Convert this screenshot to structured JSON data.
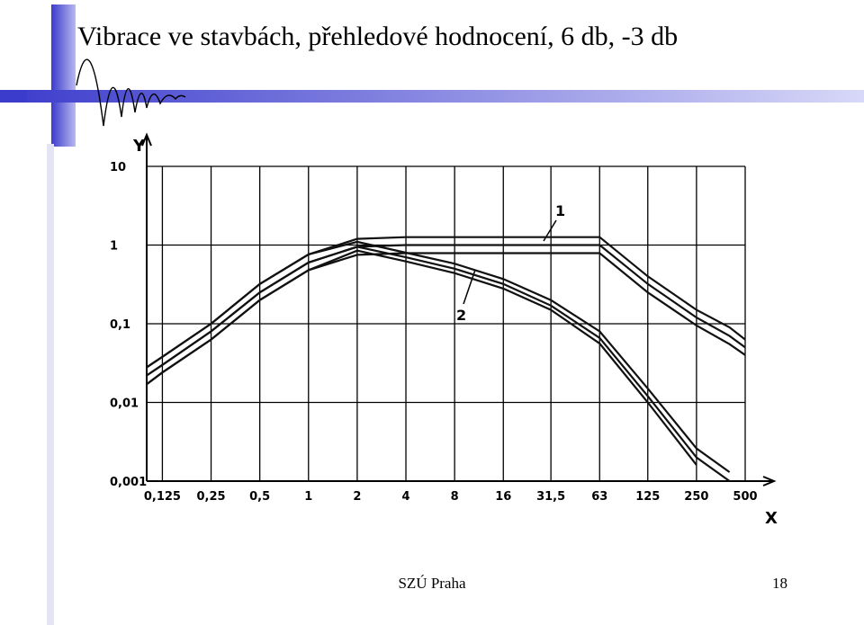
{
  "slide": {
    "title": "Vibrace ve stavbách, přehledové hodnocení, 6 db, -3 db",
    "footer": "SZÚ Praha",
    "page_number": "18"
  },
  "chart_data": {
    "type": "line",
    "log_x": true,
    "log_y": true,
    "grid": true,
    "x_label": "X",
    "y_label": "Y",
    "x": [
      0.1,
      0.125,
      0.25,
      0.5,
      1,
      2,
      4,
      8,
      16,
      31.5,
      63,
      125,
      250,
      400,
      500
    ],
    "xlim": [
      0.1,
      500
    ],
    "xticks": [
      {
        "value": 0.125,
        "label": "0,125"
      },
      {
        "value": 0.25,
        "label": "0,25"
      },
      {
        "value": 0.5,
        "label": "0,5"
      },
      1,
      2,
      4,
      8,
      16,
      {
        "value": 31.5,
        "label": "31,5"
      },
      63,
      125,
      250,
      500
    ],
    "ylim": [
      0.001,
      10
    ],
    "yticks": [
      {
        "value": 0.001,
        "label": "0,001"
      },
      {
        "value": 0.01,
        "label": "0,01"
      },
      {
        "value": 0.1,
        "label": "0,1"
      },
      1,
      10
    ],
    "series": [
      {
        "name": "1",
        "color": "#111111",
        "values": [
          0.022,
          0.03,
          0.08,
          0.25,
          0.6,
          0.95,
          1,
          1,
          1,
          1,
          1,
          0.32,
          0.12,
          0.07,
          0.05
        ],
        "upper": [
          0.028,
          0.038,
          0.1,
          0.32,
          0.76,
          1.2,
          1.26,
          1.26,
          1.26,
          1.26,
          1.26,
          0.4,
          0.15,
          0.09,
          0.063
        ],
        "lower": [
          0.017,
          0.024,
          0.063,
          0.2,
          0.48,
          0.75,
          0.79,
          0.79,
          0.79,
          0.79,
          0.79,
          0.25,
          0.095,
          0.055,
          0.04
        ]
      },
      {
        "name": "2",
        "color": "#111111",
        "values": [
          0.022,
          0.03,
          0.08,
          0.25,
          0.6,
          0.95,
          0.7,
          0.5,
          0.32,
          0.17,
          0.066,
          0.012,
          0.002,
          0.001,
          null
        ],
        "upper": [
          0.028,
          0.038,
          0.1,
          0.32,
          0.76,
          1.1,
          0.8,
          0.58,
          0.37,
          0.2,
          0.08,
          0.015,
          0.0026,
          0.0013,
          null
        ],
        "lower": [
          0.017,
          0.024,
          0.063,
          0.2,
          0.48,
          0.85,
          0.62,
          0.44,
          0.28,
          0.15,
          0.056,
          0.01,
          0.0016,
          null,
          null
        ]
      }
    ]
  }
}
